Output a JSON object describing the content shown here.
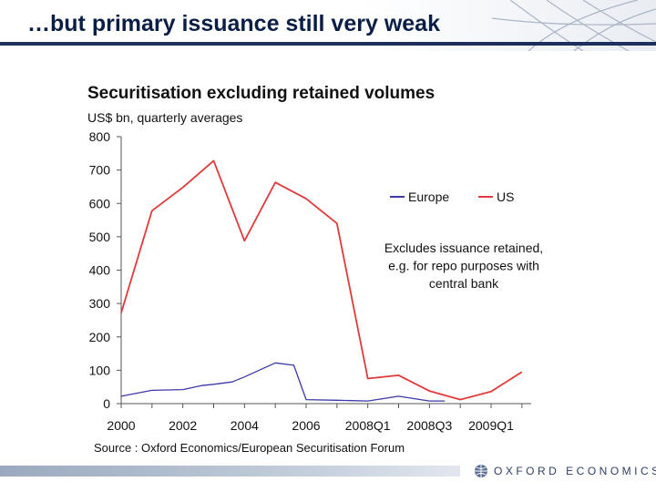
{
  "slide": {
    "title": "…but primary issuance still very weak"
  },
  "footer": {
    "logo_text": "OXFORD ECONOMICS",
    "logo_icon": "globe-icon"
  },
  "chart_data": {
    "type": "line",
    "title": "Securitisation excluding retained volumes",
    "ylabel": "US$ bn, quarterly averages",
    "xlabel": "",
    "ylim": [
      0,
      800
    ],
    "yticks": [
      0,
      100,
      200,
      300,
      400,
      500,
      600,
      700,
      800
    ],
    "x": [
      "2000",
      "2001",
      "2002",
      "2003",
      "2004",
      "2005",
      "2006",
      "2007",
      "2008Q1",
      "2008Q2",
      "2008Q3",
      "2008Q4",
      "2009Q1",
      "2009Q2"
    ],
    "x_tick_labels": [
      "2000",
      "2002",
      "2004",
      "2006",
      "2008Q1",
      "2008Q3",
      "2009Q1"
    ],
    "x_tick_positions": [
      "2000",
      "2002",
      "2004",
      "2006",
      "2008Q1",
      "2008Q3",
      "2009Q1"
    ],
    "series": [
      {
        "name": "Europe",
        "color": "#3a3aa8",
        "points": [
          [
            0,
            22
          ],
          [
            1,
            40
          ],
          [
            2,
            42
          ],
          [
            2.6,
            54
          ],
          [
            3,
            58
          ],
          [
            3.6,
            65
          ],
          [
            4,
            80
          ],
          [
            5,
            122
          ],
          [
            5.6,
            115
          ],
          [
            6,
            12
          ],
          [
            7,
            10
          ],
          [
            8,
            8
          ],
          [
            9,
            22
          ],
          [
            10,
            8
          ],
          [
            10.5,
            8
          ]
        ]
      },
      {
        "name": "US",
        "color": "#e03a3a",
        "points": [
          [
            0,
            272
          ],
          [
            1,
            578
          ],
          [
            2,
            648
          ],
          [
            3,
            728
          ],
          [
            4,
            488
          ],
          [
            5,
            663
          ],
          [
            6,
            614
          ],
          [
            7,
            540
          ],
          [
            8,
            75
          ],
          [
            9,
            85
          ],
          [
            10,
            38
          ],
          [
            11,
            12
          ],
          [
            12,
            36
          ],
          [
            13,
            95
          ]
        ]
      }
    ],
    "legend": {
      "placement": "top-right",
      "entries": [
        "Europe",
        "US"
      ]
    },
    "annotation": "Excludes issuance retained,\ne.g. for repo purposes with\ncentral bank",
    "source": "Source : Oxford Economics/European Securitisation Forum",
    "grid": false
  }
}
